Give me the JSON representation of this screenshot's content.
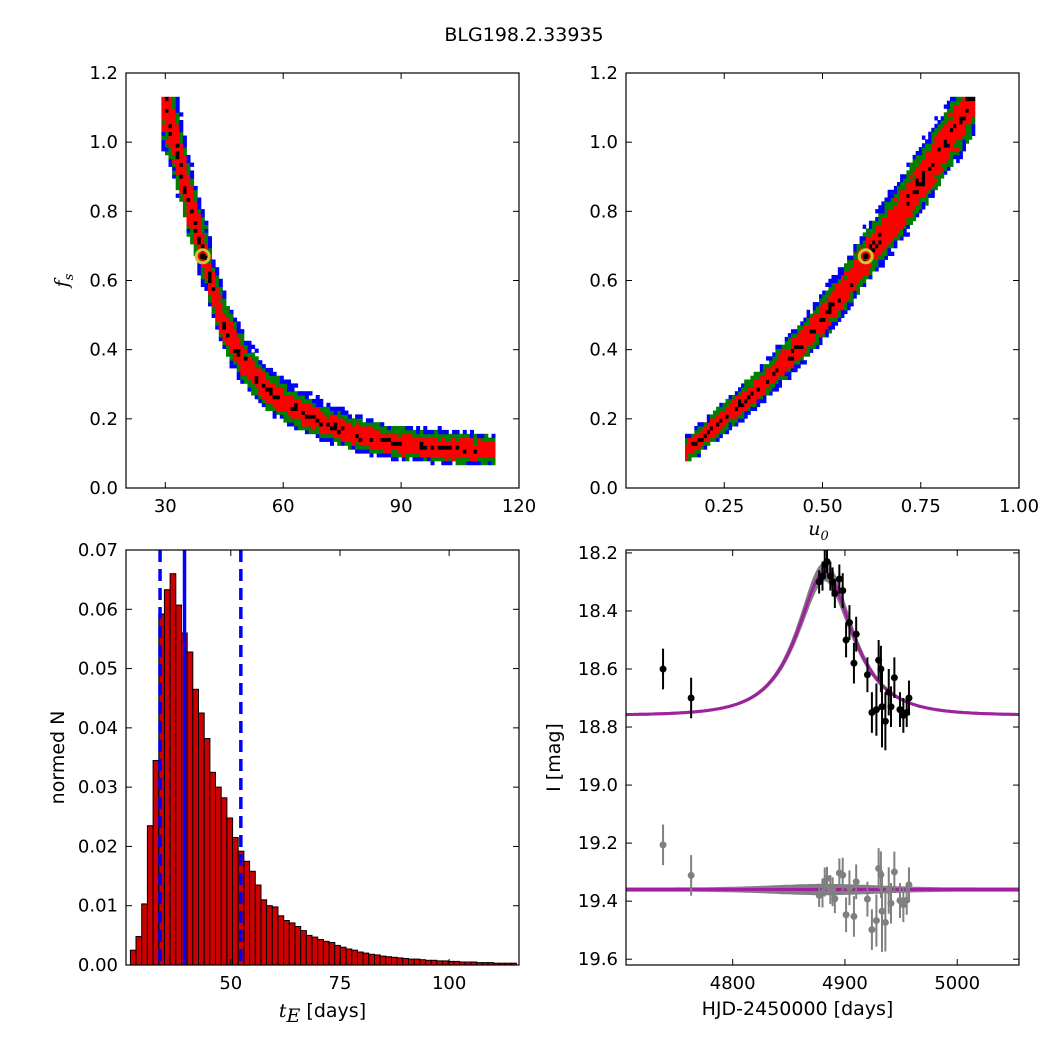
{
  "figure": {
    "title": "BLG198.2.33935"
  },
  "colors": {
    "level_1sigma": "#000000",
    "level_2sigma": "#ff0000",
    "level_3sigma": "#008000",
    "level_4sigma": "#0000ff",
    "best_fit_marker": "#c8c832",
    "hist_fill": "#cc0000",
    "median_line": "#0000ff",
    "model_line": "#a020a0",
    "model_band": "#808080",
    "data_points": "#000000",
    "residual_points": "#808080"
  },
  "chart_data": [
    {
      "id": "tE_vs_fs",
      "type": "heatmap",
      "title": "",
      "xlabel": "",
      "ylabel_prefix": "f",
      "ylabel_sub": "s",
      "xlim": [
        20,
        120
      ],
      "ylim": [
        0.0,
        1.2
      ],
      "xticks": [
        30,
        60,
        90,
        120
      ],
      "yticks": [
        0.0,
        0.2,
        0.4,
        0.6,
        0.8,
        1.0,
        1.2
      ],
      "levels": [
        "1sigma",
        "2sigma",
        "3sigma",
        "4sigma"
      ],
      "ridge": [
        [
          29,
          1.12
        ],
        [
          32,
          1.0
        ],
        [
          35,
          0.85
        ],
        [
          38,
          0.72
        ],
        [
          40,
          0.65
        ],
        [
          42,
          0.55
        ],
        [
          45,
          0.45
        ],
        [
          50,
          0.35
        ],
        [
          55,
          0.28
        ],
        [
          60,
          0.24
        ],
        [
          70,
          0.18
        ],
        [
          80,
          0.14
        ],
        [
          90,
          0.12
        ],
        [
          100,
          0.11
        ],
        [
          113,
          0.1
        ]
      ],
      "best_fit": {
        "x": 39.5,
        "y": 0.67
      }
    },
    {
      "id": "u0_vs_fs",
      "type": "heatmap",
      "title": "",
      "xlabel_prefix": "u",
      "xlabel_sub": "0",
      "ylabel": "",
      "xlim": [
        0.0,
        1.0
      ],
      "ylim": [
        0.0,
        1.2
      ],
      "xticks": [
        0.25,
        0.5,
        0.75,
        1.0
      ],
      "xticklabels": [
        "0.25",
        "0.50",
        "0.75",
        "1.00"
      ],
      "yticks": [
        0.0,
        0.2,
        0.4,
        0.6,
        0.8,
        1.0,
        1.2
      ],
      "levels": [
        "1sigma",
        "2sigma",
        "3sigma",
        "4sigma"
      ],
      "ridge": [
        [
          0.15,
          0.1
        ],
        [
          0.25,
          0.2
        ],
        [
          0.35,
          0.3
        ],
        [
          0.45,
          0.42
        ],
        [
          0.55,
          0.56
        ],
        [
          0.6,
          0.65
        ],
        [
          0.7,
          0.8
        ],
        [
          0.8,
          0.97
        ],
        [
          0.88,
          1.12
        ]
      ],
      "best_fit": {
        "x": 0.61,
        "y": 0.67
      }
    },
    {
      "id": "tE_histogram",
      "type": "bar",
      "title": "",
      "xlabel_prefix": "t",
      "xlabel_sub": "E",
      "xlabel_suffix": " [days]",
      "ylabel": "normed N",
      "xlim": [
        26,
        116
      ],
      "ylim": [
        0.0,
        0.07
      ],
      "xticks": [
        50,
        75,
        100
      ],
      "yticks": [
        0.0,
        0.01,
        0.02,
        0.03,
        0.04,
        0.05,
        0.06,
        0.07
      ],
      "bin_start": 27,
      "bin_width": 1.3,
      "values": [
        0.0025,
        0.0048,
        0.0103,
        0.0235,
        0.0345,
        0.0592,
        0.0633,
        0.066,
        0.0607,
        0.056,
        0.0528,
        0.0465,
        0.0425,
        0.0382,
        0.0325,
        0.03,
        0.0282,
        0.0248,
        0.0215,
        0.0192,
        0.0175,
        0.0158,
        0.0135,
        0.011,
        0.01,
        0.0098,
        0.0083,
        0.0075,
        0.0071,
        0.0065,
        0.0058,
        0.005,
        0.0047,
        0.0043,
        0.004,
        0.0038,
        0.0033,
        0.003,
        0.0027,
        0.0025,
        0.0022,
        0.002,
        0.0018,
        0.0017,
        0.0015,
        0.0014,
        0.0013,
        0.0012,
        0.0011,
        0.001,
        0.001,
        0.0009,
        0.0008,
        0.0008,
        0.0007,
        0.0007,
        0.0006,
        0.0006,
        0.0005,
        0.0005,
        0.0005,
        0.0004,
        0.0004,
        0.0004,
        0.0003,
        0.0003,
        0.0003,
        0.0003,
        0.0002
      ],
      "median": 39.4,
      "percentile_lines": [
        33.8,
        52.3
      ]
    },
    {
      "id": "light_curve",
      "type": "scatter",
      "title": "",
      "xlabel": "HJD-2450000 [days]",
      "ylabel": "I [mag]",
      "xlim": [
        4705,
        5055
      ],
      "ylim": [
        19.62,
        18.19
      ],
      "y_inverted": true,
      "xticks": [
        4800,
        4900,
        5000
      ],
      "yticks": [
        18.2,
        18.4,
        18.6,
        18.8,
        19.0,
        19.2,
        19.4,
        19.6
      ],
      "model": {
        "t0": 4882,
        "tE": 39.5,
        "u0": 0.61,
        "fs": 0.67,
        "I_base": 18.76
      },
      "residual_baseline": 19.36,
      "points": [
        {
          "x": 4738,
          "y": 18.6,
          "err": 0.07
        },
        {
          "x": 4763,
          "y": 18.7,
          "err": 0.07
        },
        {
          "x": 4877,
          "y": 18.3,
          "err": 0.04
        },
        {
          "x": 4880,
          "y": 18.28,
          "err": 0.05
        },
        {
          "x": 4882,
          "y": 18.24,
          "err": 0.05
        },
        {
          "x": 4884,
          "y": 18.23,
          "err": 0.04
        },
        {
          "x": 4887,
          "y": 18.28,
          "err": 0.05
        },
        {
          "x": 4889,
          "y": 18.3,
          "err": 0.05
        },
        {
          "x": 4891,
          "y": 18.34,
          "err": 0.05
        },
        {
          "x": 4895,
          "y": 18.29,
          "err": 0.05
        },
        {
          "x": 4898,
          "y": 18.33,
          "err": 0.06
        },
        {
          "x": 4901,
          "y": 18.5,
          "err": 0.06
        },
        {
          "x": 4904,
          "y": 18.44,
          "err": 0.06
        },
        {
          "x": 4908,
          "y": 18.58,
          "err": 0.07
        },
        {
          "x": 4910,
          "y": 18.48,
          "err": 0.06
        },
        {
          "x": 4920,
          "y": 18.62,
          "err": 0.06
        },
        {
          "x": 4924,
          "y": 18.75,
          "err": 0.07
        },
        {
          "x": 4928,
          "y": 18.74,
          "err": 0.09
        },
        {
          "x": 4930,
          "y": 18.57,
          "err": 0.07
        },
        {
          "x": 4932,
          "y": 18.6,
          "err": 0.08
        },
        {
          "x": 4933,
          "y": 18.73,
          "err": 0.14
        },
        {
          "x": 4936,
          "y": 18.78,
          "err": 0.1
        },
        {
          "x": 4939,
          "y": 18.68,
          "err": 0.08
        },
        {
          "x": 4941,
          "y": 18.73,
          "err": 0.07
        },
        {
          "x": 4944,
          "y": 18.63,
          "err": 0.07
        },
        {
          "x": 4949,
          "y": 18.74,
          "err": 0.06
        },
        {
          "x": 4952,
          "y": 18.76,
          "err": 0.06
        },
        {
          "x": 4955,
          "y": 18.75,
          "err": 0.05
        },
        {
          "x": 4957,
          "y": 18.7,
          "err": 0.06
        }
      ]
    }
  ]
}
